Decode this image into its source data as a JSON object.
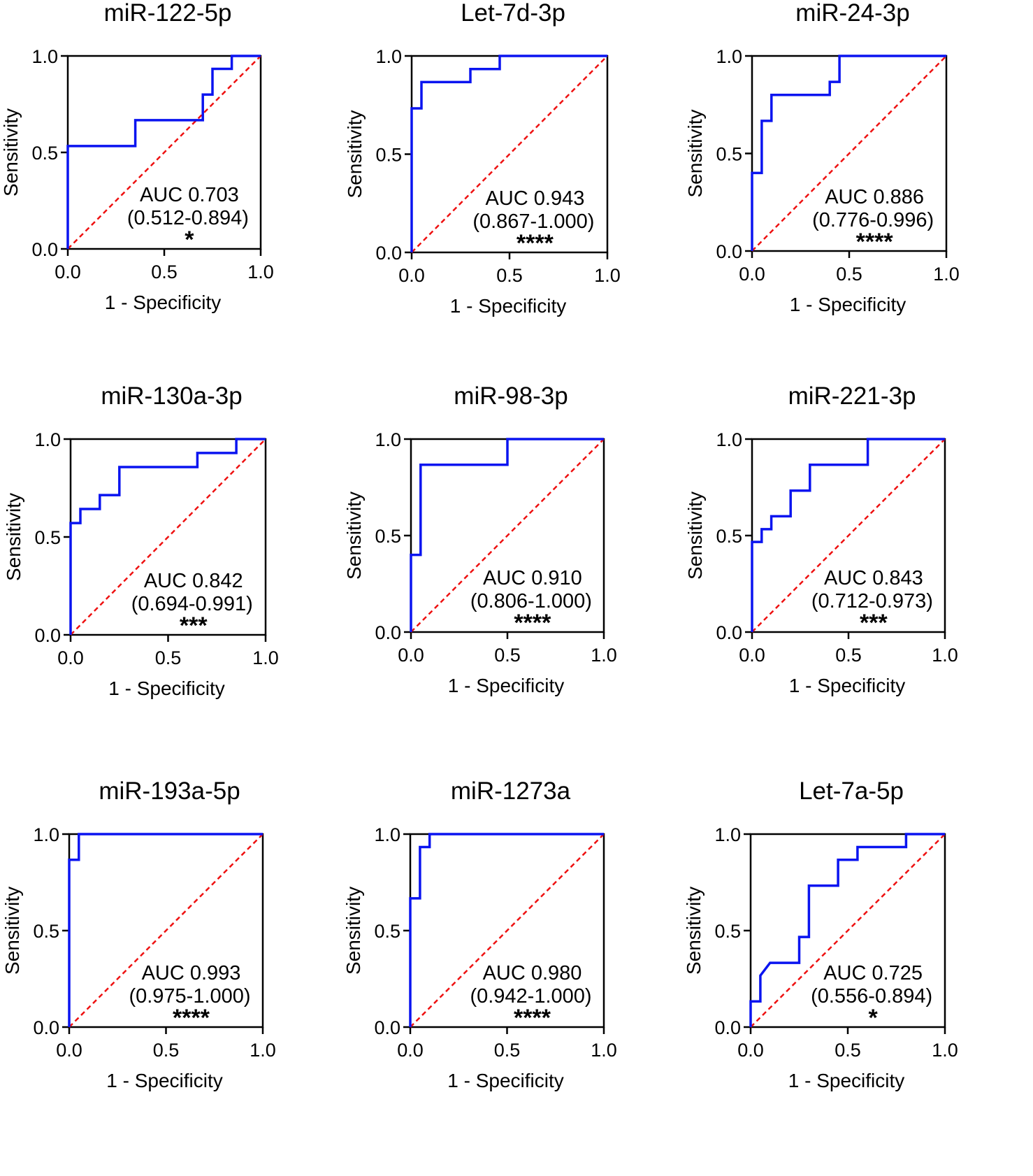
{
  "colors": {
    "roc": "#0a14f0",
    "reference": "#ee1111",
    "axis": "#000000"
  },
  "chart_data": [
    {
      "type": "line",
      "title": "miR-122-5p",
      "xlabel": "1 - Specificity",
      "ylabel": "Sensitivity",
      "xlim": [
        0,
        1
      ],
      "ylim": [
        0,
        1
      ],
      "xticks": [
        "0.0",
        "0.5",
        "1.0"
      ],
      "yticks": [
        "0.0",
        "0.5",
        "1.0"
      ],
      "auc": "AUC 0.703",
      "ci": "(0.512-0.894)",
      "significance": "*",
      "x": [
        0,
        0,
        0.35,
        0.35,
        0.7,
        0.7,
        0.75,
        0.75,
        0.85,
        0.85,
        1
      ],
      "y": [
        0,
        0.533,
        0.533,
        0.667,
        0.667,
        0.8,
        0.8,
        0.933,
        0.933,
        1,
        1
      ]
    },
    {
      "type": "line",
      "title": "Let-7d-3p",
      "xlabel": "1 - Specificity",
      "ylabel": "Sensitivity",
      "xlim": [
        0,
        1
      ],
      "ylim": [
        0,
        1
      ],
      "xticks": [
        "0.0",
        "0.5",
        "1.0"
      ],
      "yticks": [
        "0.0",
        "0.5",
        "1.0"
      ],
      "auc": "AUC 0.943",
      "ci": "(0.867-1.000)",
      "significance": "****",
      "x": [
        0,
        0,
        0.05,
        0.05,
        0.3,
        0.3,
        0.45,
        0.45,
        1
      ],
      "y": [
        0,
        0.733,
        0.733,
        0.867,
        0.867,
        0.933,
        0.933,
        1,
        1
      ]
    },
    {
      "type": "line",
      "title": "miR-24-3p",
      "xlabel": "1 - Specificity",
      "ylabel": "Sensitivity",
      "xlim": [
        0,
        1
      ],
      "ylim": [
        0,
        1
      ],
      "xticks": [
        "0.0",
        "0.5",
        "1.0"
      ],
      "yticks": [
        "0.0",
        "0.5",
        "1.0"
      ],
      "auc": "AUC 0.886",
      "ci": "(0.776-0.996)",
      "significance": "****",
      "x": [
        0,
        0,
        0.05,
        0.05,
        0.1,
        0.1,
        0.4,
        0.4,
        0.45,
        0.45,
        1
      ],
      "y": [
        0,
        0.4,
        0.4,
        0.667,
        0.667,
        0.8,
        0.8,
        0.867,
        0.867,
        1,
        1
      ]
    },
    {
      "type": "line",
      "title": "miR-130a-3p",
      "xlabel": "1 - Specificity",
      "ylabel": "Sensitivity",
      "xlim": [
        0,
        1
      ],
      "ylim": [
        0,
        1
      ],
      "xticks": [
        "0.0",
        "0.5",
        "1.0"
      ],
      "yticks": [
        "0.0",
        "0.5",
        "1.0"
      ],
      "auc": "AUC 0.842",
      "ci": "(0.694-0.991)",
      "significance": "***",
      "x": [
        0,
        0,
        0.05,
        0.05,
        0.15,
        0.15,
        0.25,
        0.25,
        0.65,
        0.65,
        0.85,
        0.85,
        1
      ],
      "y": [
        0,
        0.571,
        0.571,
        0.643,
        0.643,
        0.714,
        0.714,
        0.857,
        0.857,
        0.929,
        0.929,
        1,
        1
      ]
    },
    {
      "type": "line",
      "title": "miR-98-3p",
      "xlabel": "1 - Specificity",
      "ylabel": "Sensitivity",
      "xlim": [
        0,
        1
      ],
      "ylim": [
        0,
        1
      ],
      "xticks": [
        "0.0",
        "0.5",
        "1.0"
      ],
      "yticks": [
        "0.0",
        "0.5",
        "1.0"
      ],
      "auc": "AUC 0.910",
      "ci": "(0.806-1.000)",
      "significance": "****",
      "x": [
        0,
        0,
        0.05,
        0.05,
        0.5,
        0.5,
        1
      ],
      "y": [
        0,
        0.4,
        0.4,
        0.867,
        0.867,
        1,
        1
      ]
    },
    {
      "type": "line",
      "title": "miR-221-3p",
      "xlabel": "1 - Specificity",
      "ylabel": "Sensitivity",
      "xlim": [
        0,
        1
      ],
      "ylim": [
        0,
        1
      ],
      "xticks": [
        "0.0",
        "0.5",
        "1.0"
      ],
      "yticks": [
        "0.0",
        "0.5",
        "1.0"
      ],
      "auc": "AUC 0.843",
      "ci": "(0.712-0.973)",
      "significance": "***",
      "x": [
        0,
        0,
        0.05,
        0.05,
        0.1,
        0.1,
        0.2,
        0.2,
        0.3,
        0.3,
        0.6,
        0.6,
        1
      ],
      "y": [
        0,
        0.467,
        0.467,
        0.533,
        0.533,
        0.6,
        0.6,
        0.733,
        0.733,
        0.867,
        0.867,
        1,
        1
      ]
    },
    {
      "type": "line",
      "title": "miR-193a-5p",
      "xlabel": "1 - Specificity",
      "ylabel": "Sensitivity",
      "xlim": [
        0,
        1
      ],
      "ylim": [
        0,
        1
      ],
      "xticks": [
        "0.0",
        "0.5",
        "1.0"
      ],
      "yticks": [
        "0.0",
        "0.5",
        "1.0"
      ],
      "auc": "AUC 0.993",
      "ci": "(0.975-1.000)",
      "significance": "****",
      "x": [
        0,
        0,
        0.05,
        0.05,
        1
      ],
      "y": [
        0,
        0.867,
        0.867,
        1,
        1
      ]
    },
    {
      "type": "line",
      "title": "miR-1273a",
      "xlabel": "1 - Specificity",
      "ylabel": "Sensitivity",
      "xlim": [
        0,
        1
      ],
      "ylim": [
        0,
        1
      ],
      "xticks": [
        "0.0",
        "0.5",
        "1.0"
      ],
      "yticks": [
        "0.0",
        "0.5",
        "1.0"
      ],
      "auc": "AUC 0.980",
      "ci": "(0.942-1.000)",
      "significance": "****",
      "x": [
        0,
        0,
        0.05,
        0.05,
        0.1,
        0.1,
        1
      ],
      "y": [
        0,
        0.667,
        0.667,
        0.933,
        0.933,
        1,
        1
      ]
    },
    {
      "type": "line",
      "title": "Let-7a-5p",
      "xlabel": "1 - Specificity",
      "ylabel": "Sensitivity",
      "xlim": [
        0,
        1
      ],
      "ylim": [
        0,
        1
      ],
      "xticks": [
        "0.0",
        "0.5",
        "1.0"
      ],
      "yticks": [
        "0.0",
        "0.5",
        "1.0"
      ],
      "auc": "AUC 0.725",
      "ci": "(0.556-0.894)",
      "significance": "*",
      "x": [
        0,
        0,
        0.05,
        0.05,
        0.1,
        0.25,
        0.25,
        0.3,
        0.3,
        0.45,
        0.45,
        0.55,
        0.55,
        0.8,
        0.8,
        1
      ],
      "y": [
        0,
        0.133,
        0.133,
        0.267,
        0.333,
        0.333,
        0.467,
        0.467,
        0.733,
        0.733,
        0.867,
        0.867,
        0.933,
        0.933,
        1,
        1
      ]
    }
  ]
}
